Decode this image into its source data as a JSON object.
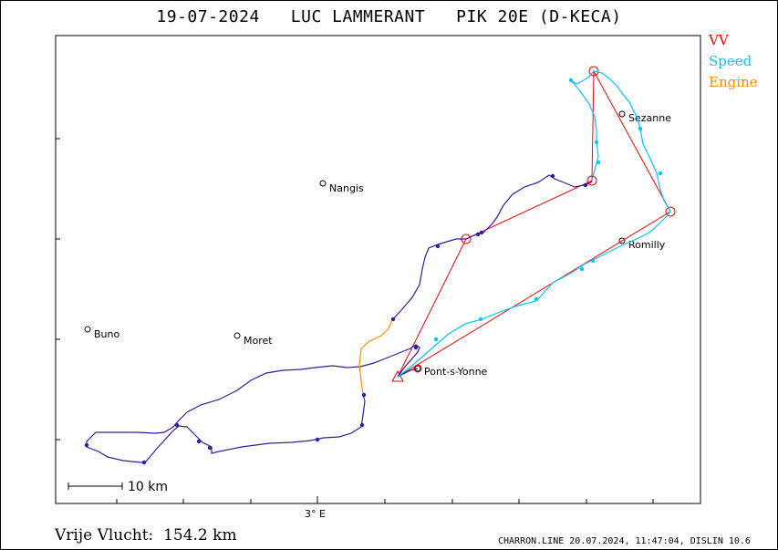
{
  "title": "19-07-2024   LUC LAMMERANT   PIK 20E (D-KECA)",
  "legend": {
    "vv": {
      "label": "VV",
      "color": "#ff0000"
    },
    "speed": {
      "label": "Speed",
      "color": "#00c8ff"
    },
    "engine": {
      "label": "Engine",
      "color": "#ff8c00"
    }
  },
  "track_color": "#3a1a9a",
  "towns": [
    {
      "name": "Nangis",
      "icon": "town-marker-icon"
    },
    {
      "name": "Sezanne",
      "icon": "town-marker-icon"
    },
    {
      "name": "Romilly",
      "icon": "town-marker-icon"
    },
    {
      "name": "Buno",
      "icon": "town-marker-icon"
    },
    {
      "name": "Moret",
      "icon": "town-marker-icon"
    },
    {
      "name": "Pont-s-Yonne",
      "icon": "town-marker-icon"
    }
  ],
  "axis": {
    "x_label": "3° E"
  },
  "scale": {
    "label": "10  km"
  },
  "footer": {
    "distance": "Vrije Vlucht:  154.2 km",
    "info": "CHARRON.LINE 20.07.2024, 11:47:04, DISLIN 10.6"
  }
}
